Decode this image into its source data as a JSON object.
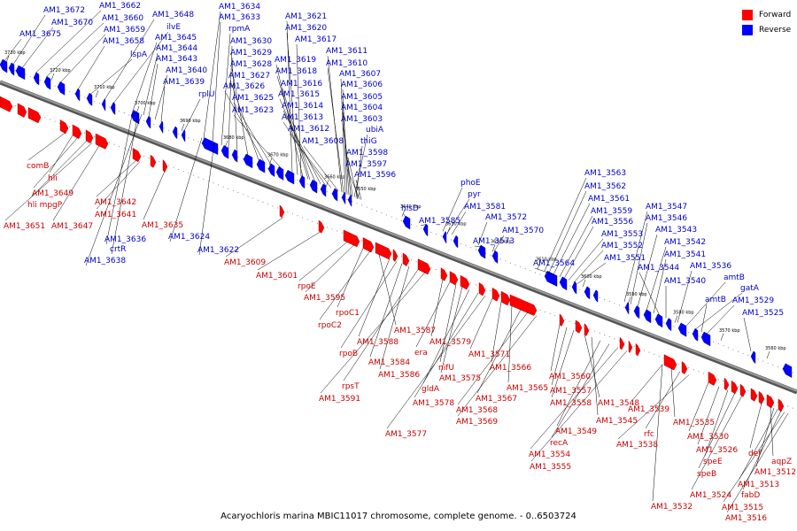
{
  "title": "Acaryochloris marina MBIC11017 chromosome, complete genome. - 0..6503724",
  "legend": [
    {
      "name": "Forward",
      "color": "#ff0000"
    },
    {
      "name": "Reverse",
      "color": "#0000ff"
    }
  ],
  "colors": {
    "forward_label": "#cc0000",
    "reverse_label": "#0000cc",
    "axis": "#808080",
    "leader": "#000000"
  },
  "scale": {
    "start_kbp": 3730,
    "end_kbp": 3560,
    "ticks": [
      "3730 kbp",
      "3720 kbp",
      "3710 kbp",
      "3700 kbp",
      "3690 kbp",
      "3680 kbp",
      "3670 kbp",
      "3660 kbp",
      "3650 kbp",
      "3640 kbp",
      "3630 kbp",
      "3620 kbp",
      "3610 kbp",
      "3600 kbp",
      "3590 kbp",
      "3580 kbp",
      "3570 kbp",
      "3560 kbp"
    ]
  },
  "reverse_labels": [
    "AM1_3672",
    "AM1_3670",
    "AM1_3675",
    "AM1_3662",
    "AM1_3660",
    "AM1_3659",
    "AM1_3658",
    "lspA",
    "AM1_3648",
    "ilvE",
    "AM1_3645",
    "AM1_3644",
    "AM1_3643",
    "AM1_3640",
    "AM1_3639",
    "rplU",
    "AM1_3634",
    "AM1_3633",
    "rpmA",
    "AM1_3630",
    "AM1_3629",
    "AM1_3628",
    "AM1_3627",
    "AM1_3626",
    "AM1_3625",
    "AM1_3623",
    "AM1_3621",
    "AM1_3620",
    "AM1_3617",
    "AM1_3619",
    "AM1_3618",
    "AM1_3616",
    "AM1_3615",
    "AM1_3614",
    "AM1_3613",
    "AM1_3612",
    "AM1_3608",
    "AM1_3611",
    "AM1_3610",
    "AM1_3607",
    "AM1_3606",
    "AM1_3605",
    "AM1_3604",
    "AM1_3603",
    "ubiA",
    "thiG",
    "AM1_3598",
    "AM1_3597",
    "AM1_3596",
    "hisD",
    "AM1_3585",
    "phoE",
    "pyr",
    "AM1_3581",
    "AM1_3572",
    "AM1_3573",
    "AM1_3570",
    "AM1_3563",
    "AM1_3562",
    "AM1_3561",
    "AM1_3559",
    "AM1_3556",
    "AM1_3553",
    "AM1_3552",
    "AM1_3551",
    "AM1_3564",
    "AM1_3547",
    "AM1_3546",
    "AM1_3543",
    "AM1_3542",
    "AM1_3541",
    "AM1_3544",
    "AM1_3540",
    "AM1_3536",
    "amtB",
    "gatA",
    "amtB",
    "AM1_3529",
    "AM1_3525",
    "AM1_3624",
    "AM1_3622",
    "AM1_3636",
    "crtR",
    "AM1_3638"
  ],
  "forward_labels": [
    "comB",
    "hli",
    "AM1_3649",
    "hli mpgP",
    "AM1_3651",
    "AM1_3647",
    "AM1_3642",
    "AM1_3641",
    "AM1_3635",
    "AM1_3609",
    "AM1_3601",
    "rpoE",
    "AM1_3595",
    "rpoC1",
    "rpoC2",
    "AM1_3587",
    "AM1_3588",
    "rpoB",
    "AM1_3584",
    "AM1_3586",
    "rpsT",
    "AM1_3591",
    "AM1_3579",
    "era",
    "nifU",
    "AM1_3575",
    "gldA",
    "AM1_3578",
    "AM1_3577",
    "AM1_3571",
    "AM1_3566",
    "AM1_3565",
    "AM1_3567",
    "AM1_3568",
    "AM1_3569",
    "AM1_3560",
    "AM1_3557",
    "AM1_3558",
    "AM1_3548",
    "AM1_3545",
    "AM1_3549",
    "recA",
    "AM1_3554",
    "AM1_3555",
    "AM1_3539",
    "AM1_3535",
    "rfc",
    "AM1_3538",
    "AM1_3530",
    "AM1_3526",
    "speE",
    "speB",
    "AM1_3524",
    "AM1_3532",
    "def",
    "aqpZ",
    "AM1_3512",
    "AM1_3513",
    "fabD",
    "AM1_3515",
    "AM1_3516"
  ]
}
